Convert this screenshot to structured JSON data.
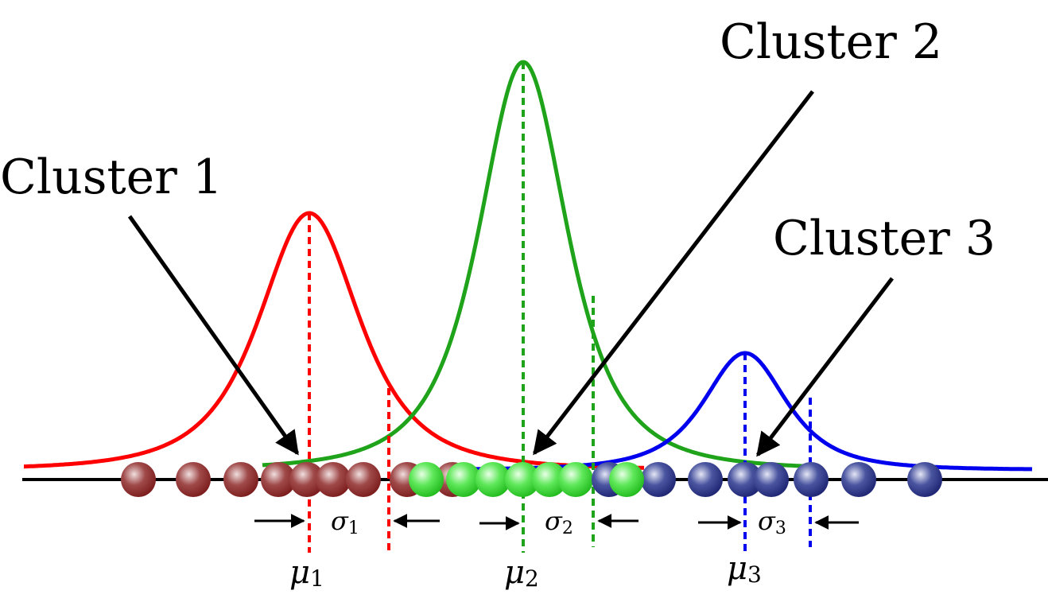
{
  "clusters": [
    {
      "label": "Cluster 1",
      "mu_symbol": "μ",
      "mu_sub": "1",
      "sigma_symbol": "σ",
      "sigma_sub": "1",
      "curve_color": "#ff0000",
      "ball_base": "#7a1a1a",
      "ball_mid": "#a04a4a",
      "ball_light": "#f0dede"
    },
    {
      "label": "Cluster 2",
      "mu_symbol": "μ",
      "mu_sub": "2",
      "sigma_symbol": "σ",
      "sigma_sub": "2",
      "curve_color": "#1fa31a",
      "ball_base": "#1eb81a",
      "ball_mid": "#5fe85a",
      "ball_light": "#e8ffe6"
    },
    {
      "label": "Cluster 3",
      "mu_symbol": "μ",
      "mu_sub": "3",
      "sigma_symbol": "σ",
      "sigma_sub": "3",
      "curve_color": "#0000ee",
      "ball_base": "#1c2370",
      "ball_mid": "#4a55a0",
      "ball_light": "#e4e6f5"
    }
  ],
  "axis_color": "#000000",
  "arrow_color": "#000000"
}
